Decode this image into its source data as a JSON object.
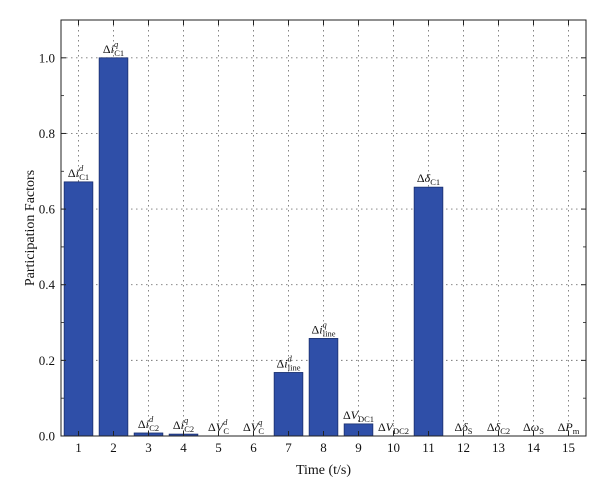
{
  "chart_data": {
    "type": "bar",
    "xlabel": "Time (t/s)",
    "ylabel": "Participation Factors",
    "categories": [
      "1",
      "2",
      "3",
      "4",
      "5",
      "6",
      "7",
      "8",
      "9",
      "10",
      "11",
      "12",
      "13",
      "14",
      "15"
    ],
    "values": [
      0.672,
      1.0,
      0.008,
      0.005,
      0.0,
      0.0,
      0.168,
      0.258,
      0.032,
      0.0,
      0.658,
      0.0,
      0.0,
      0.0,
      0.0
    ],
    "bar_labels": [
      {
        "base": "i",
        "sup": "d",
        "sub": "C1"
      },
      {
        "base": "i",
        "sup": "q",
        "sub": "C1"
      },
      {
        "base": "i",
        "sup": "d",
        "sub": "C2"
      },
      {
        "base": "i",
        "sup": "q",
        "sub": "C2"
      },
      {
        "base": "V",
        "sup": "d",
        "sub": "C"
      },
      {
        "base": "V",
        "sup": "q",
        "sub": "C"
      },
      {
        "base": "i",
        "sup": "d",
        "sub": "line"
      },
      {
        "base": "i",
        "sup": "q",
        "sub": "line"
      },
      {
        "base": "V",
        "sup": "",
        "sub": "DC1"
      },
      {
        "base": "V",
        "sup": "",
        "sub": "DC2"
      },
      {
        "base": "δ",
        "sup": "",
        "sub": "C1"
      },
      {
        "base": "δ",
        "sup": "",
        "sub": "S"
      },
      {
        "base": "δ",
        "sup": "",
        "sub": "C2"
      },
      {
        "base": "ω",
        "sup": "",
        "sub": "S"
      },
      {
        "base": "P",
        "sup": "",
        "sub": "m"
      }
    ],
    "delta_symbol": "Δ",
    "yticks": [
      "0.0",
      "0.2",
      "0.4",
      "0.6",
      "0.8",
      "1.0"
    ],
    "ylim": [
      0,
      1.1
    ],
    "grid": true,
    "bar_color": "#2f4fa8",
    "bar_edge_color": "#1a2f6e"
  }
}
